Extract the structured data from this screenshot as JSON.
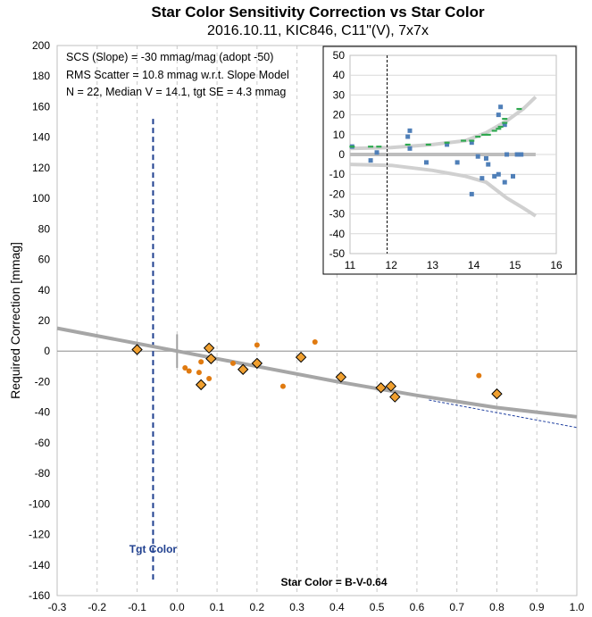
{
  "chart_data": [
    {
      "type": "scatter",
      "title": "Star Color Sensitivity Correction vs Star Color",
      "subtitle": "2016.10.11, KIC846, C11\"(V), 7x7x",
      "xlabel": "Star Color = B-V-0.64",
      "ylabel": "Required Correction [mmag]",
      "xlim": [
        -0.3,
        1.0
      ],
      "ylim": [
        -160,
        200
      ],
      "x_ticks": [
        "-0.3",
        "-0.2",
        "-0.1",
        "0.0",
        "0.1",
        "0.2",
        "0.3",
        "0.4",
        "0.5",
        "0.6",
        "0.7",
        "0.8",
        "0.9",
        "1.0"
      ],
      "y_ticks": [
        "-160",
        "-140",
        "-120",
        "-100",
        "-80",
        "-60",
        "-40",
        "-20",
        "0",
        "20",
        "40",
        "60",
        "80",
        "100",
        "120",
        "140",
        "160",
        "180",
        "200"
      ],
      "grid": "vertical dashed",
      "stats_lines": [
        "SCS (Slope)  =  -30 mmag/mag (adopt -50)",
        "RMS Scatter = 10.8 mmag w.r.t. Slope Model",
        "N = 22,  Median V = 14.1, tgt SE = 4.3 mmag"
      ],
      "target_label": "Tgt Color",
      "target_color_x": -0.06,
      "series": [
        {
          "marker": "diamond",
          "color": "#f0a030",
          "points": [
            [
              -0.1,
              1
            ],
            [
              0.06,
              -22
            ],
            [
              0.08,
              2
            ],
            [
              0.085,
              -5
            ],
            [
              0.165,
              -12
            ],
            [
              0.2,
              -8
            ],
            [
              0.31,
              -4
            ],
            [
              0.41,
              -17
            ],
            [
              0.51,
              -24
            ],
            [
              0.535,
              -23
            ],
            [
              0.545,
              -30
            ],
            [
              0.8,
              -28
            ]
          ]
        },
        {
          "marker": "dot",
          "color": "#e07a10",
          "points": [
            [
              0.02,
              -11
            ],
            [
              0.03,
              -13
            ],
            [
              0.055,
              -14
            ],
            [
              0.06,
              -7
            ],
            [
              0.08,
              -18
            ],
            [
              0.14,
              -8
            ],
            [
              0.2,
              4
            ],
            [
              0.265,
              -23
            ],
            [
              0.345,
              6
            ],
            [
              0.755,
              -16
            ]
          ]
        }
      ],
      "fit_curve": [
        [
          -0.3,
          15
        ],
        [
          0.0,
          0
        ],
        [
          0.2,
          -10
        ],
        [
          0.4,
          -20
        ],
        [
          0.6,
          -29
        ],
        [
          0.8,
          -37
        ],
        [
          1.0,
          -43
        ]
      ],
      "dashed_line": [
        [
          0.63,
          -32
        ],
        [
          1.0,
          -50
        ]
      ],
      "colors": {
        "fit": "#a6a6a6",
        "dashed_fit": "#2040a0",
        "target_line": "#1f3f8f"
      }
    },
    {
      "type": "scatter",
      "xlim": [
        11,
        16
      ],
      "ylim": [
        -50,
        50
      ],
      "x_ticks": [
        "11",
        "12",
        "13",
        "14",
        "15",
        "16"
      ],
      "y_ticks": [
        "-50",
        "-40",
        "-30",
        "-20",
        "-10",
        "0",
        "10",
        "20",
        "30",
        "40",
        "50"
      ],
      "target_x": 11.9,
      "series": [
        {
          "marker": "square",
          "color": "#4f7fb8",
          "points": [
            [
              11.05,
              4
            ],
            [
              11.5,
              -3
            ],
            [
              11.65,
              1
            ],
            [
              12.4,
              9
            ],
            [
              12.45,
              12
            ],
            [
              12.45,
              3
            ],
            [
              12.85,
              -4
            ],
            [
              13.35,
              5
            ],
            [
              13.6,
              -4
            ],
            [
              13.95,
              6
            ],
            [
              13.95,
              -20
            ],
            [
              14.1,
              -1
            ],
            [
              14.2,
              -12
            ],
            [
              14.3,
              -2
            ],
            [
              14.35,
              -5
            ],
            [
              14.5,
              -11
            ],
            [
              14.6,
              -10
            ],
            [
              14.6,
              20
            ],
            [
              14.65,
              24
            ],
            [
              14.75,
              -14
            ],
            [
              14.75,
              15
            ],
            [
              14.8,
              0
            ],
            [
              14.95,
              -11
            ],
            [
              15.05,
              0
            ],
            [
              15.1,
              0
            ],
            [
              15.15,
              0
            ]
          ]
        },
        {
          "marker": "dash",
          "color": "#2ea84f",
          "points": [
            [
              11.05,
              4
            ],
            [
              11.5,
              4
            ],
            [
              11.7,
              4
            ],
            [
              12.4,
              5
            ],
            [
              12.9,
              5
            ],
            [
              13.35,
              6
            ],
            [
              13.75,
              7
            ],
            [
              13.95,
              7
            ],
            [
              14.1,
              9
            ],
            [
              14.25,
              10
            ],
            [
              14.35,
              10
            ],
            [
              14.5,
              12
            ],
            [
              14.6,
              13
            ],
            [
              14.65,
              14
            ],
            [
              14.75,
              16
            ],
            [
              14.75,
              18
            ],
            [
              15.1,
              23
            ]
          ]
        }
      ],
      "envelope_upper": [
        [
          11,
          3
        ],
        [
          12,
          3.5
        ],
        [
          13,
          5
        ],
        [
          13.8,
          7
        ],
        [
          14.3,
          11
        ],
        [
          14.8,
          17
        ],
        [
          15.2,
          23
        ],
        [
          15.5,
          29
        ]
      ],
      "envelope_lower": [
        [
          11,
          -5
        ],
        [
          12,
          -5.5
        ],
        [
          13,
          -8
        ],
        [
          13.8,
          -11
        ],
        [
          14.3,
          -14
        ],
        [
          14.8,
          -22
        ],
        [
          15.2,
          -27
        ],
        [
          15.5,
          -31
        ]
      ],
      "zero_line": [
        [
          11,
          0
        ],
        [
          15.5,
          0
        ]
      ],
      "colors": {
        "envelope": "#d0d0d0",
        "zero": "#bdbdbd"
      }
    }
  ]
}
